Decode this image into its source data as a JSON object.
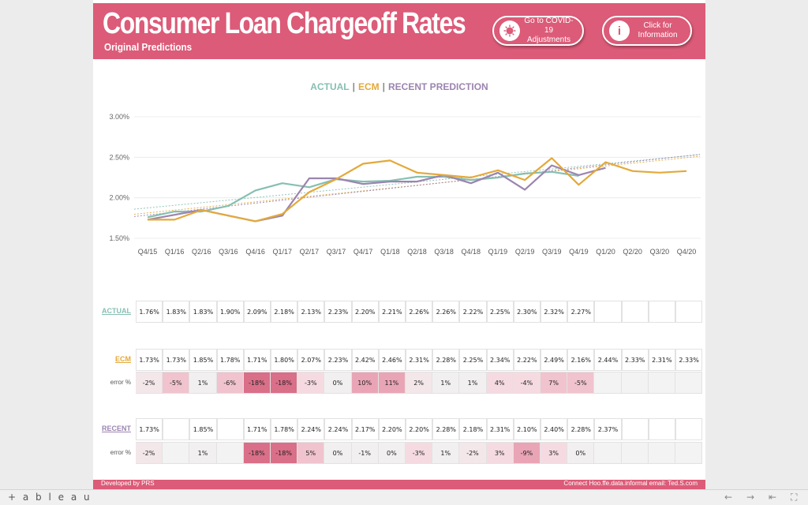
{
  "header": {
    "title": "Consumer Loan Chargeoff Rates",
    "subtitle": "Original Predictions",
    "covid_button": {
      "line1": "Go to COVID-19",
      "line2": "Adjustments",
      "icon": "virus-icon"
    },
    "info_button": {
      "line1": "Click for",
      "line2": "Information",
      "icon": "info-icon",
      "icon_glyph": "i"
    }
  },
  "legend": {
    "actual": "ACTUAL",
    "ecm": "ECM",
    "recent": "RECENT PREDICTION",
    "sep": "|"
  },
  "colors": {
    "brand": "#dc5b78",
    "actual": "#86bfb2",
    "ecm": "#e3a93a",
    "recent": "#9b84b0"
  },
  "table": {
    "actual_label": "ACTUAL",
    "ecm_label": "ECM",
    "recent_label": "RECENT",
    "error_label": "error %",
    "actual": [
      "1.76%",
      "1.83%",
      "1.83%",
      "1.90%",
      "2.09%",
      "2.18%",
      "2.13%",
      "2.23%",
      "2.20%",
      "2.21%",
      "2.26%",
      "2.26%",
      "2.22%",
      "2.25%",
      "2.30%",
      "2.32%",
      "2.27%",
      "",
      "",
      "",
      ""
    ],
    "ecm": [
      "1.73%",
      "1.73%",
      "1.85%",
      "1.78%",
      "1.71%",
      "1.80%",
      "2.07%",
      "2.23%",
      "2.42%",
      "2.46%",
      "2.31%",
      "2.28%",
      "2.25%",
      "2.34%",
      "2.22%",
      "2.49%",
      "2.16%",
      "2.44%",
      "2.33%",
      "2.31%",
      "2.33%"
    ],
    "ecm_error": [
      "-2%",
      "-5%",
      "1%",
      "-6%",
      "-18%",
      "-18%",
      "-3%",
      "0%",
      "10%",
      "11%",
      "2%",
      "1%",
      "1%",
      "4%",
      "-4%",
      "7%",
      "-5%",
      "",
      "",
      "",
      ""
    ],
    "recent": [
      "1.73%",
      "",
      "1.85%",
      "",
      "1.71%",
      "1.78%",
      "2.24%",
      "2.24%",
      "2.17%",
      "2.20%",
      "2.20%",
      "2.28%",
      "2.18%",
      "2.31%",
      "2.10%",
      "2.40%",
      "2.28%",
      "2.37%",
      "",
      "",
      ""
    ],
    "recent_error": [
      "-2%",
      "",
      "1%",
      "",
      "-18%",
      "-18%",
      "5%",
      "0%",
      "-1%",
      "0%",
      "-3%",
      "1%",
      "-2%",
      "3%",
      "-9%",
      "3%",
      "0%",
      "",
      "",
      "",
      ""
    ]
  },
  "chart_data": {
    "type": "line",
    "title": "",
    "xlabel": "",
    "ylabel": "",
    "ylim": [
      1.5,
      3.0
    ],
    "y_ticks": [
      "1.50%",
      "2.00%",
      "2.50%",
      "3.00%"
    ],
    "y_tick_values": [
      1.5,
      2.0,
      2.5,
      3.0
    ],
    "categories": [
      "Q4/15",
      "Q1/16",
      "Q2/16",
      "Q3/16",
      "Q4/16",
      "Q1/17",
      "Q2/17",
      "Q3/17",
      "Q4/17",
      "Q1/18",
      "Q2/18",
      "Q3/18",
      "Q4/18",
      "Q1/19",
      "Q2/19",
      "Q3/19",
      "Q4/19",
      "Q1/20",
      "Q2/20",
      "Q3/20",
      "Q4/20"
    ],
    "grid": true,
    "legend": "top-center",
    "trendlines": true,
    "series": [
      {
        "name": "ACTUAL",
        "color": "#86bfb2",
        "values": [
          1.76,
          1.83,
          1.83,
          1.9,
          2.09,
          2.18,
          2.13,
          2.23,
          2.2,
          2.21,
          2.26,
          2.26,
          2.22,
          2.25,
          2.3,
          2.32,
          2.27,
          null,
          null,
          null,
          null
        ]
      },
      {
        "name": "ECM",
        "color": "#e3a93a",
        "values": [
          1.73,
          1.73,
          1.85,
          1.78,
          1.71,
          1.8,
          2.07,
          2.23,
          2.42,
          2.46,
          2.31,
          2.28,
          2.25,
          2.34,
          2.22,
          2.49,
          2.16,
          2.44,
          2.33,
          2.31,
          2.33
        ]
      },
      {
        "name": "RECENT PREDICTION",
        "color": "#9b84b0",
        "values": [
          1.73,
          null,
          1.85,
          null,
          1.71,
          1.78,
          2.24,
          2.24,
          2.17,
          2.2,
          2.2,
          2.28,
          2.18,
          2.31,
          2.1,
          2.4,
          2.28,
          2.37,
          null,
          null,
          null
        ]
      }
    ]
  },
  "footer": {
    "left": "Developed by PRS",
    "right": "Connect Hoo.ffe.data.informal email: Ted.S.com"
  },
  "tableau_bar": {
    "logo": "+ a b l e a u",
    "logo_icon": "tableau-logo-icon",
    "controls": [
      "undo-icon",
      "redo-icon",
      "revert-icon",
      "fullscreen-icon"
    ],
    "glyphs": [
      "←",
      "→",
      "⇤",
      "⛶"
    ]
  }
}
